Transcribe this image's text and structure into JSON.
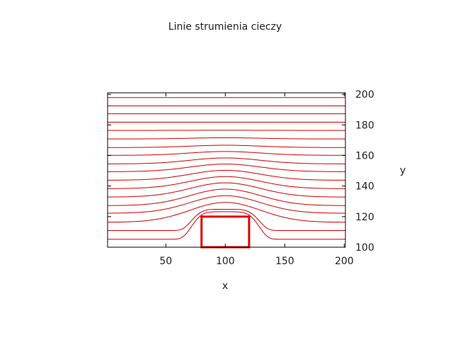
{
  "chart_data": {
    "type": "line",
    "title": "Linie strumienia cieczy",
    "xlabel": "x",
    "ylabel": "y",
    "xlim": [
      1,
      201
    ],
    "ylim": [
      100,
      201
    ],
    "xticks": [
      50,
      100,
      150,
      200
    ],
    "yticks": [
      100,
      120,
      140,
      160,
      180,
      200
    ],
    "y_axis_side": "right",
    "grid": false,
    "legend": "none",
    "line_color": "#cc0000",
    "obstacle": {
      "x": [
        80,
        120
      ],
      "y": [
        100,
        120
      ],
      "color": "#dd0000"
    },
    "streamlines": [
      {
        "far_y": 105.2,
        "peak_y": 123.2
      },
      {
        "far_y": 110.9,
        "peak_y": 124.8
      },
      {
        "far_y": 116.3,
        "peak_y": 129.3
      },
      {
        "far_y": 122.2,
        "peak_y": 133.7
      },
      {
        "far_y": 127.2,
        "peak_y": 138.0
      },
      {
        "far_y": 132.8,
        "peak_y": 142.1
      },
      {
        "far_y": 138.3,
        "peak_y": 146.2
      },
      {
        "far_y": 143.8,
        "peak_y": 150.3
      },
      {
        "far_y": 149.4,
        "peak_y": 154.4
      },
      {
        "far_y": 154.5,
        "peak_y": 158.4
      },
      {
        "far_y": 160.1,
        "peak_y": 162.6
      },
      {
        "far_y": 165.2,
        "peak_y": 166.7
      },
      {
        "far_y": 170.8,
        "peak_y": 171.6
      },
      {
        "far_y": 176.4,
        "peak_y": 176.5
      },
      {
        "far_y": 181.8,
        "peak_y": 181.8
      },
      {
        "far_y": 187.3,
        "peak_y": 187.3
      },
      {
        "far_y": 192.4,
        "peak_y": 192.4
      },
      {
        "far_y": 197.9,
        "peak_y": 197.9
      }
    ]
  }
}
